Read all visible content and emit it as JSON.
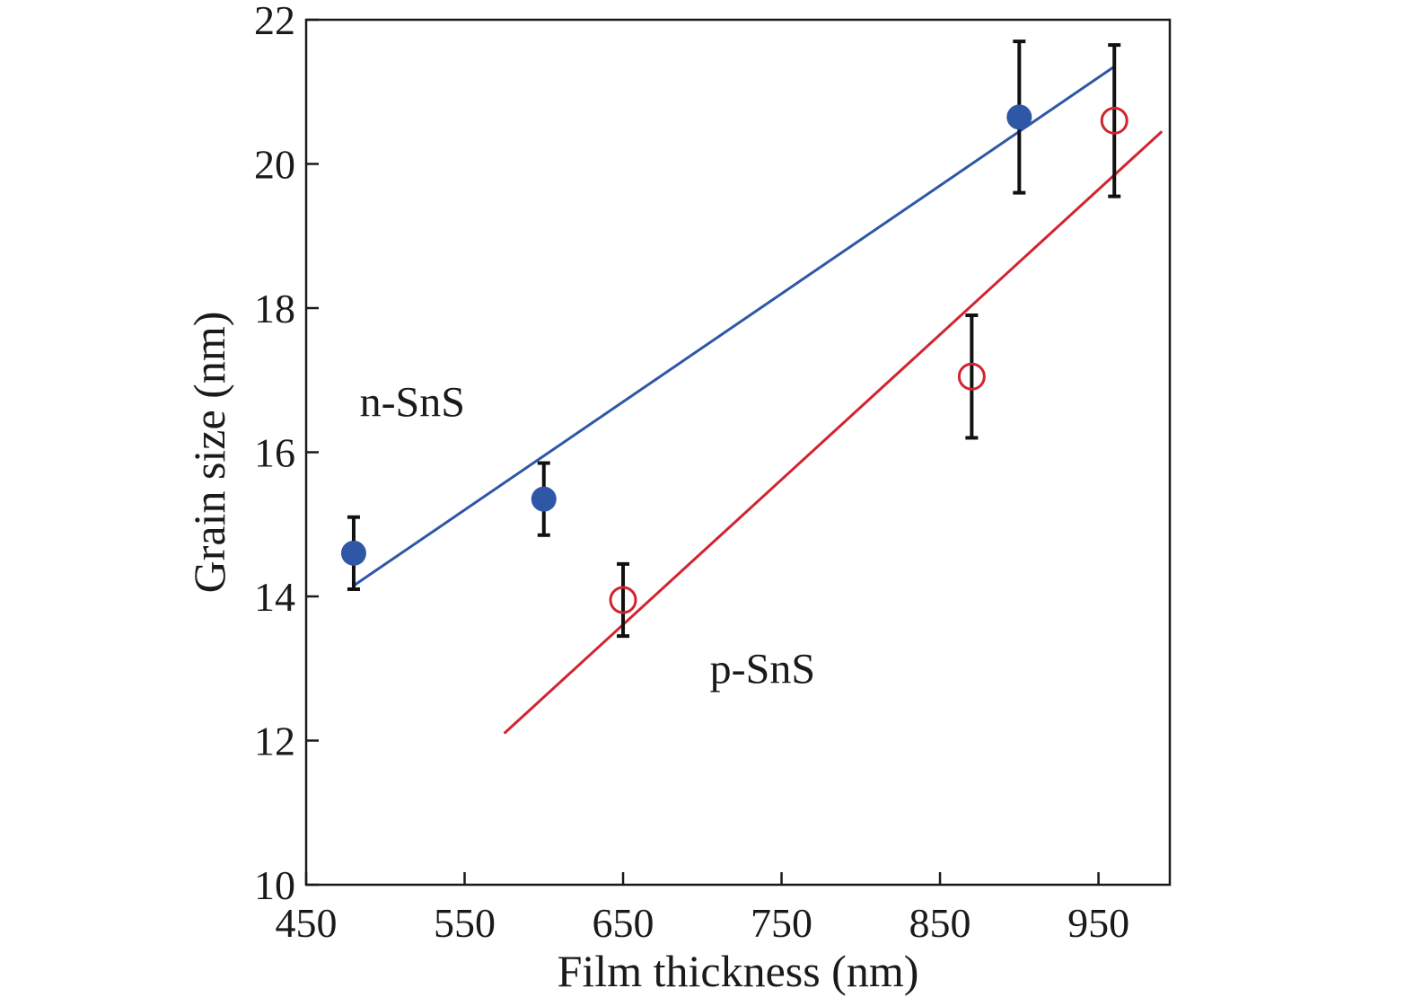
{
  "chart_data": {
    "type": "scatter",
    "xlabel": "Film thickness (nm)",
    "ylabel": "Grain size (nm)",
    "xlim": [
      450,
      995
    ],
    "ylim": [
      10,
      22
    ],
    "xticks": [
      450,
      550,
      650,
      750,
      850,
      950
    ],
    "yticks": [
      10,
      12,
      14,
      16,
      18,
      20,
      22
    ],
    "grid": false,
    "legend": "none",
    "series": [
      {
        "name": "n-SnS",
        "marker": "filled-circle",
        "color": "#2e57a6",
        "points": [
          {
            "x": 480,
            "y": 14.6,
            "err": 0.5
          },
          {
            "x": 600,
            "y": 15.35,
            "err": 0.5
          },
          {
            "x": 900,
            "y": 20.65,
            "err": 1.05
          }
        ],
        "fit": {
          "x": [
            480,
            960
          ],
          "y": [
            14.15,
            21.35
          ]
        }
      },
      {
        "name": "p-SnS",
        "marker": "open-circle",
        "color": "#d1242f",
        "points": [
          {
            "x": 650,
            "y": 13.95,
            "err": 0.5
          },
          {
            "x": 870,
            "y": 17.05,
            "err": 0.85
          },
          {
            "x": 960,
            "y": 20.6,
            "err": 1.05
          }
        ],
        "fit": {
          "x": [
            575,
            990
          ],
          "y": [
            12.1,
            20.45
          ]
        }
      }
    ],
    "annotations": [
      {
        "text": "n-SnS",
        "x": 517,
        "y": 16.5
      },
      {
        "text": "p-SnS",
        "x": 738,
        "y": 12.8
      }
    ]
  }
}
